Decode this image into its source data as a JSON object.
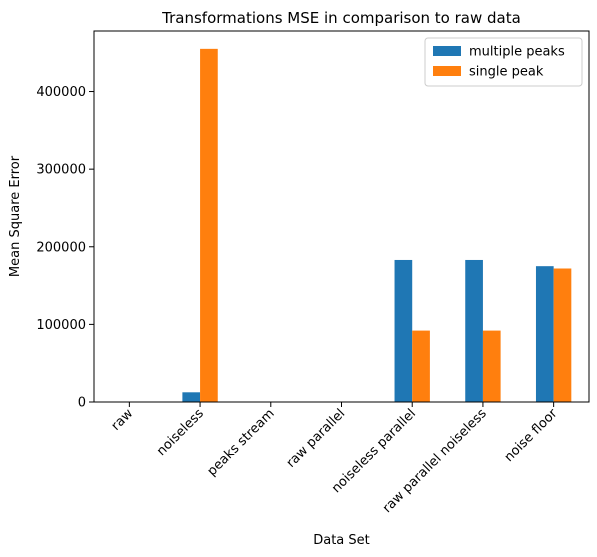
{
  "chart_data": {
    "type": "bar",
    "title": "Transformations MSE in comparison to raw data",
    "xlabel": "Data Set",
    "ylabel": "Mean Square Error",
    "categories": [
      "raw",
      "noiseless",
      "peaks stream",
      "raw parallel",
      "noiseless parallel",
      "raw parallel noiseless",
      "noise floor"
    ],
    "series": [
      {
        "name": "multiple peaks",
        "color": "#1f77b4",
        "values": [
          0,
          12500,
          0,
          0,
          183000,
          183000,
          175000
        ]
      },
      {
        "name": "single peak",
        "color": "#ff7f0e",
        "values": [
          0,
          455000,
          0,
          0,
          92000,
          92000,
          172000
        ]
      }
    ],
    "ylim": [
      0,
      478000
    ],
    "yticks": [
      0,
      100000,
      200000,
      300000,
      400000
    ],
    "ytick_labels": [
      "0",
      "100000",
      "200000",
      "300000",
      "400000"
    ],
    "grid": false,
    "legend_position": "top-right"
  }
}
